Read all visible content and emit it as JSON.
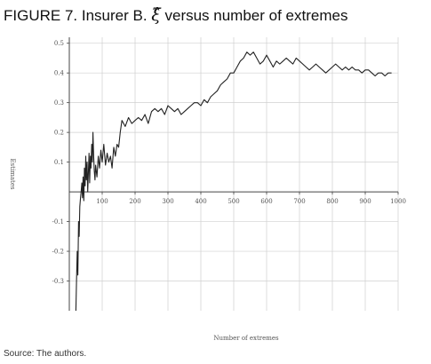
{
  "figure": {
    "title_prefix": "FIGURE 7. Insurer B.",
    "title_symbol": "ξ̂",
    "title_suffix": "versus number of extremes",
    "source": "Source: The authors."
  },
  "chart_data": {
    "type": "line",
    "xlabel": "Number of extremes",
    "ylabel": "Estimates",
    "xlim": [
      0,
      1000
    ],
    "ylim": [
      -0.4,
      0.52
    ],
    "x_ticks": [
      100,
      200,
      300,
      400,
      500,
      600,
      700,
      800,
      900,
      1000
    ],
    "x_tick_labels": [
      "100",
      "200",
      "300",
      "400",
      "500",
      "600",
      "700",
      "800",
      "900",
      "1000"
    ],
    "y_ticks": [
      0.5,
      0.4,
      0.3,
      0.2,
      0.1,
      -0.1,
      -0.2,
      -0.3
    ],
    "y_tick_labels": [
      "0.5",
      "0.4",
      "0.3",
      "0.2",
      "0.1",
      "-0.1",
      "-0.2",
      "-0.3"
    ],
    "grid": true,
    "series": [
      {
        "color": "#222222",
        "x": [
          20,
          22,
          24,
          26,
          28,
          30,
          32,
          34,
          36,
          38,
          40,
          42,
          44,
          46,
          48,
          50,
          52,
          54,
          56,
          58,
          60,
          62,
          64,
          66,
          68,
          70,
          72,
          74,
          76,
          78,
          80,
          84,
          88,
          92,
          96,
          100,
          105,
          110,
          115,
          120,
          125,
          130,
          135,
          140,
          145,
          150,
          155,
          160,
          170,
          180,
          190,
          200,
          210,
          220,
          230,
          240,
          250,
          260,
          270,
          280,
          290,
          300,
          310,
          320,
          330,
          340,
          350,
          360,
          370,
          380,
          390,
          400,
          410,
          420,
          430,
          440,
          450,
          460,
          470,
          480,
          490,
          500,
          510,
          520,
          530,
          540,
          550,
          560,
          570,
          580,
          590,
          600,
          610,
          620,
          630,
          640,
          650,
          660,
          670,
          680,
          690,
          700,
          710,
          720,
          730,
          740,
          750,
          760,
          770,
          780,
          790,
          800,
          810,
          820,
          830,
          840,
          850,
          860,
          870,
          880,
          890,
          900,
          910,
          920,
          930,
          940,
          950,
          960,
          970,
          980
        ],
        "y": [
          -0.4,
          -0.3,
          -0.2,
          -0.28,
          -0.1,
          -0.15,
          -0.05,
          -0.02,
          0.0,
          0.03,
          -0.02,
          0.05,
          -0.03,
          0.08,
          0.02,
          0.12,
          0.04,
          0.1,
          0.0,
          0.07,
          0.13,
          0.03,
          0.12,
          0.08,
          0.16,
          0.1,
          0.2,
          0.12,
          0.07,
          0.04,
          0.09,
          0.05,
          0.12,
          0.08,
          0.14,
          0.1,
          0.16,
          0.09,
          0.13,
          0.1,
          0.12,
          0.08,
          0.15,
          0.12,
          0.16,
          0.15,
          0.2,
          0.24,
          0.22,
          0.25,
          0.23,
          0.24,
          0.25,
          0.24,
          0.26,
          0.23,
          0.27,
          0.28,
          0.27,
          0.28,
          0.26,
          0.29,
          0.28,
          0.27,
          0.28,
          0.26,
          0.27,
          0.28,
          0.29,
          0.3,
          0.3,
          0.29,
          0.31,
          0.3,
          0.32,
          0.33,
          0.34,
          0.36,
          0.37,
          0.38,
          0.4,
          0.4,
          0.42,
          0.44,
          0.45,
          0.47,
          0.46,
          0.47,
          0.45,
          0.43,
          0.44,
          0.46,
          0.44,
          0.42,
          0.44,
          0.43,
          0.44,
          0.45,
          0.44,
          0.43,
          0.45,
          0.44,
          0.43,
          0.42,
          0.41,
          0.42,
          0.43,
          0.42,
          0.41,
          0.4,
          0.41,
          0.42,
          0.43,
          0.42,
          0.41,
          0.42,
          0.41,
          0.42,
          0.41,
          0.41,
          0.4,
          0.41,
          0.41,
          0.4,
          0.39,
          0.4,
          0.4,
          0.39,
          0.4,
          0.4
        ]
      }
    ]
  }
}
